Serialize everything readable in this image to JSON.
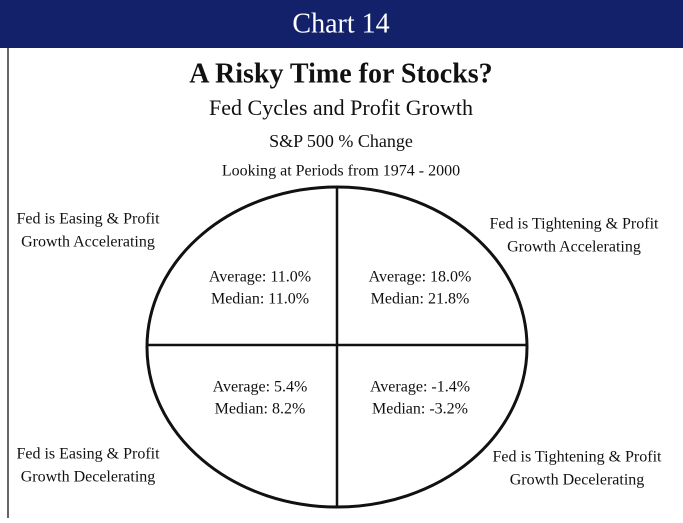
{
  "header": {
    "title": "Chart 14"
  },
  "title": "A Risky Time for Stocks?",
  "subtitle": "Fed Cycles and Profit Growth",
  "measure": "S&P 500 % Change",
  "period": "Looking at Periods from 1974 - 2000",
  "quadrants": [
    {
      "label": [
        "Fed is Easing & Profit",
        "Growth Accelerating"
      ],
      "average": "Average: 11.0%",
      "median": "Median: 11.0%"
    },
    {
      "label": [
        "Fed is Tightening & Profit",
        "Growth Accelerating"
      ],
      "average": "Average: 18.0%",
      "median": "Median: 21.8%"
    },
    {
      "label": [
        "Fed is Easing & Profit",
        "Growth Decelerating"
      ],
      "average": "Average: 5.4%",
      "median": "Median: 8.2%"
    },
    {
      "label": [
        "Fed is Tightening & Profit",
        "Growth Decelerating"
      ],
      "average": "Average: -1.4%",
      "median": "Median: -3.2%"
    }
  ]
}
